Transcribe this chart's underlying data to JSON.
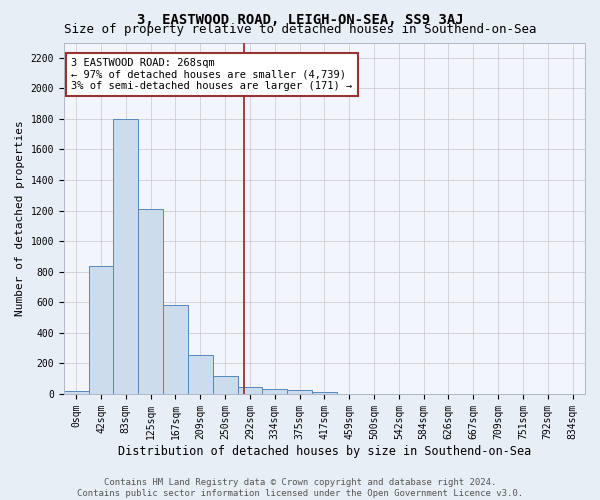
{
  "title": "3, EASTWOOD ROAD, LEIGH-ON-SEA, SS9 3AJ",
  "subtitle": "Size of property relative to detached houses in Southend-on-Sea",
  "xlabel": "Distribution of detached houses by size in Southend-on-Sea",
  "ylabel": "Number of detached properties",
  "footer_line1": "Contains HM Land Registry data © Crown copyright and database right 2024.",
  "footer_line2": "Contains public sector information licensed under the Open Government Licence v3.0.",
  "bin_labels": [
    "0sqm",
    "42sqm",
    "83sqm",
    "125sqm",
    "167sqm",
    "209sqm",
    "250sqm",
    "292sqm",
    "334sqm",
    "375sqm",
    "417sqm",
    "459sqm",
    "500sqm",
    "542sqm",
    "584sqm",
    "626sqm",
    "667sqm",
    "709sqm",
    "751sqm",
    "792sqm",
    "834sqm"
  ],
  "bar_values": [
    20,
    840,
    1800,
    1210,
    580,
    255,
    115,
    45,
    35,
    25,
    15,
    0,
    0,
    0,
    0,
    0,
    0,
    0,
    0,
    0,
    0
  ],
  "bar_color": "#ccdcec",
  "bar_edge_color": "#5588bb",
  "vline_x": 7.27,
  "vline_color": "#993333",
  "annotation_text": "3 EASTWOOD ROAD: 268sqm\n← 97% of detached houses are smaller (4,739)\n3% of semi-detached houses are larger (171) →",
  "annotation_box_color": "white",
  "annotation_box_edge_color": "#993333",
  "ylim": [
    0,
    2300
  ],
  "yticks": [
    0,
    200,
    400,
    600,
    800,
    1000,
    1200,
    1400,
    1600,
    1800,
    2000,
    2200
  ],
  "background_color": "#e8eef6",
  "plot_bg_color": "#f2f6fc",
  "grid_color": "#c8c8c8",
  "title_fontsize": 10,
  "subtitle_fontsize": 9,
  "xlabel_fontsize": 8.5,
  "ylabel_fontsize": 8,
  "tick_fontsize": 7,
  "annotation_fontsize": 7.5,
  "footer_fontsize": 6.5
}
